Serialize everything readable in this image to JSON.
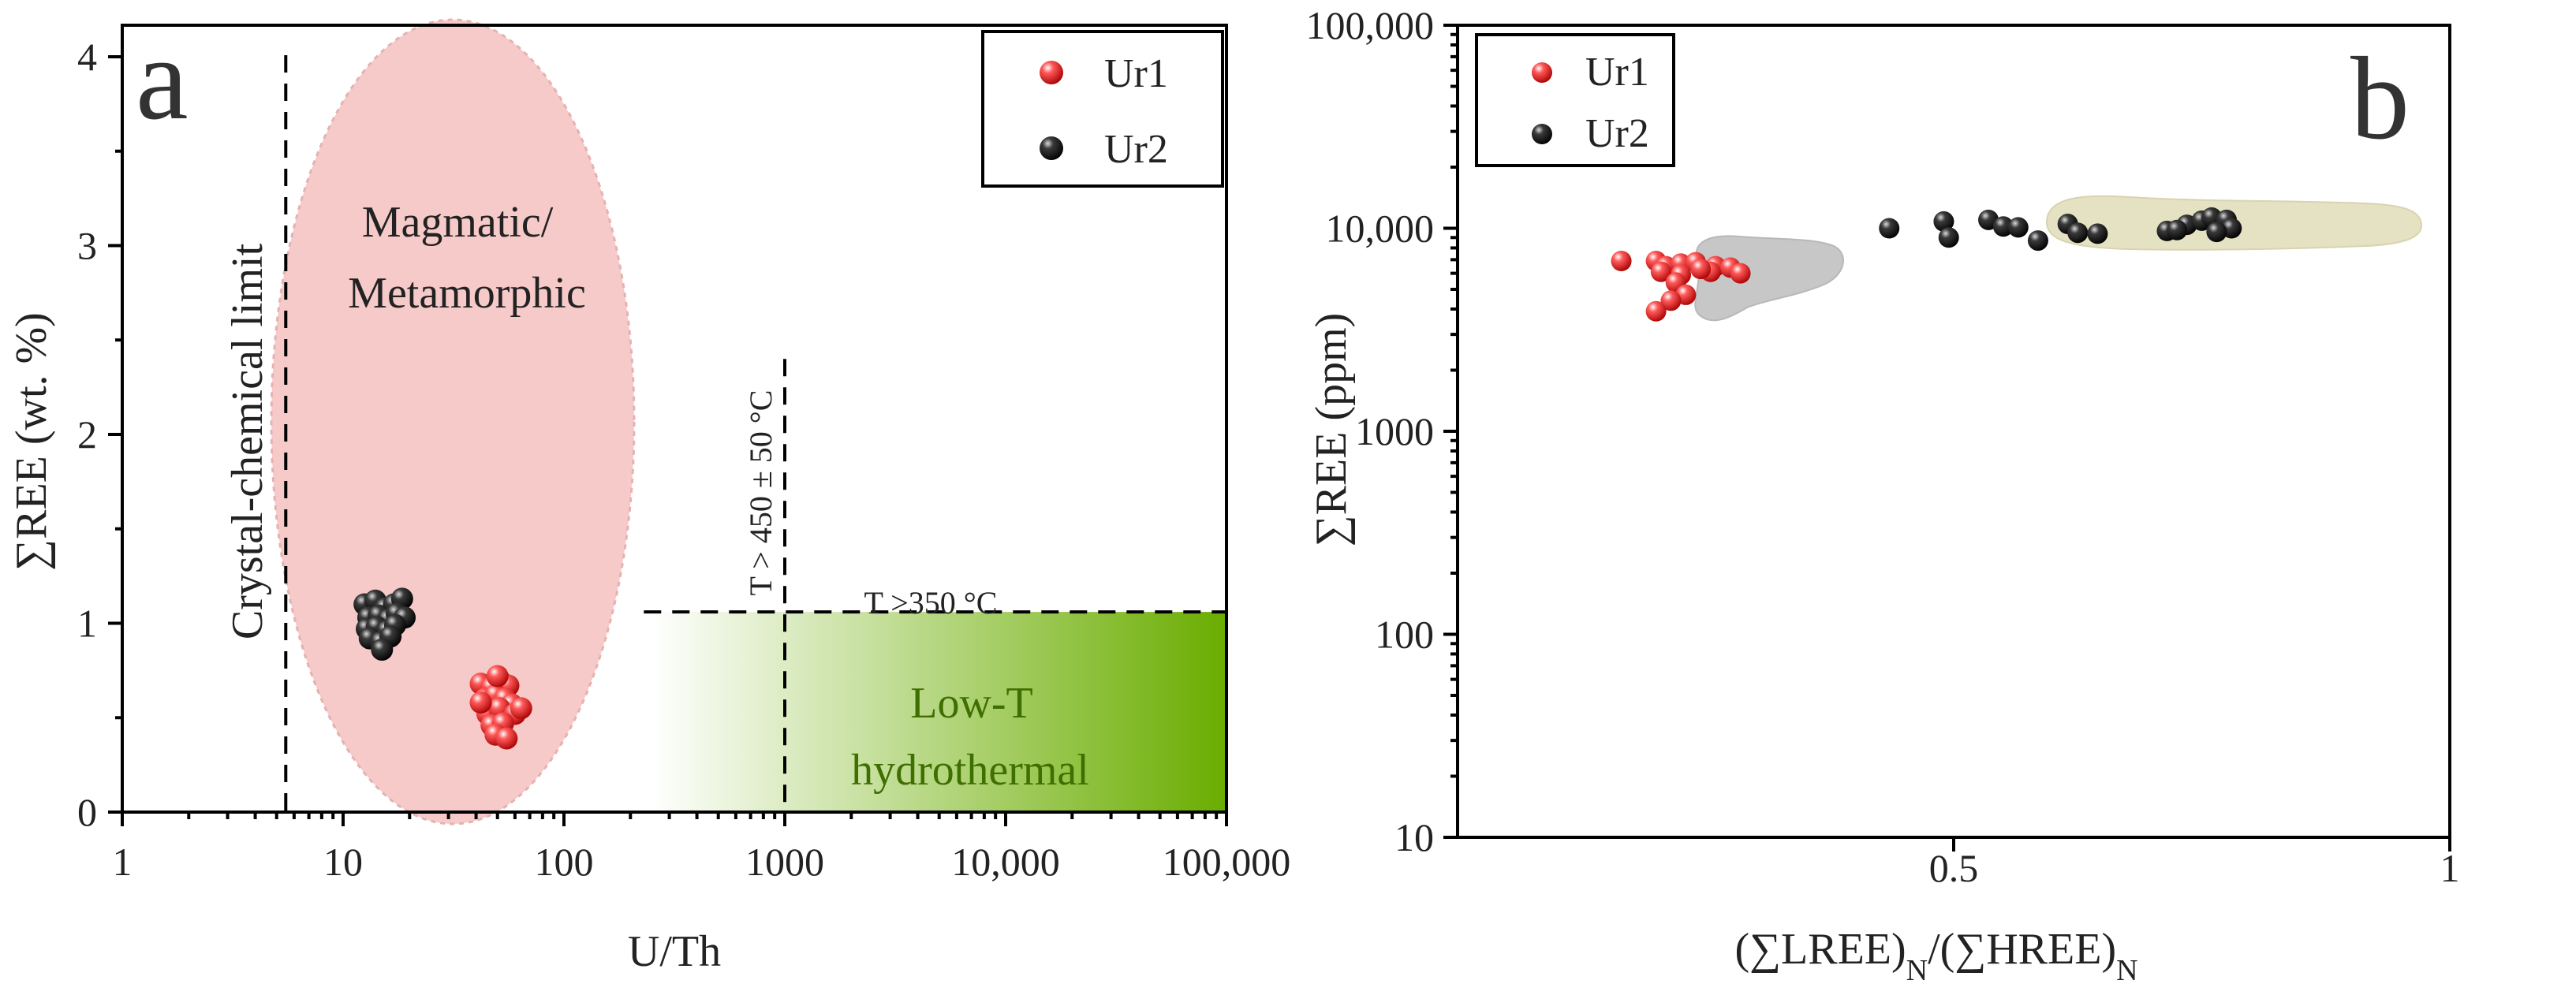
{
  "chart_data": [
    {
      "type": "scatter",
      "panel": "a",
      "xlabel": "U/Th",
      "ylabel": "∑REE (wt. %)",
      "xscale": "log",
      "xlim": [
        1,
        100000
      ],
      "ylim": [
        0,
        4.4
      ],
      "x_ticks": [
        {
          "value": 1,
          "label": "1"
        },
        {
          "value": 10,
          "label": "10"
        },
        {
          "value": 100,
          "label": "100"
        },
        {
          "value": 1000,
          "label": "1000"
        },
        {
          "value": 10000,
          "label": "10,000"
        },
        {
          "value": 100000,
          "label": "100,000"
        }
      ],
      "y_ticks": [
        {
          "value": 0,
          "label": "0"
        },
        {
          "value": 1,
          "label": "1"
        },
        {
          "value": 2,
          "label": "2"
        },
        {
          "value": 3,
          "label": "3"
        },
        {
          "value": 4,
          "label": "4"
        }
      ],
      "legend_position": "top-right",
      "series": [
        {
          "name": "Ur1",
          "color": "#e01818",
          "points": [
            [
              42,
              0.68
            ],
            [
              47,
              0.66
            ],
            [
              52,
              0.69
            ],
            [
              56,
              0.67
            ],
            [
              44,
              0.6
            ],
            [
              49,
              0.62
            ],
            [
              54,
              0.6
            ],
            [
              58,
              0.57
            ],
            [
              45,
              0.52
            ],
            [
              51,
              0.55
            ],
            [
              60,
              0.52
            ],
            [
              47,
              0.46
            ],
            [
              53,
              0.47
            ],
            [
              49,
              0.41
            ],
            [
              55,
              0.39
            ],
            [
              42,
              0.58
            ],
            [
              64,
              0.55
            ],
            [
              50,
              0.72
            ]
          ]
        },
        {
          "name": "Ur2",
          "color": "#111111",
          "points": [
            [
              12.5,
              1.1
            ],
            [
              14,
              1.12
            ],
            [
              15.5,
              1.08
            ],
            [
              17,
              1.1
            ],
            [
              18.5,
              1.13
            ],
            [
              13,
              1.03
            ],
            [
              14.5,
              1.04
            ],
            [
              16,
              1.02
            ],
            [
              17.5,
              1.05
            ],
            [
              19,
              1.03
            ],
            [
              12.8,
              0.97
            ],
            [
              14.2,
              0.98
            ],
            [
              15.8,
              0.96
            ],
            [
              17.2,
              0.99
            ],
            [
              13.2,
              0.92
            ],
            [
              14.8,
              0.9
            ],
            [
              16.4,
              0.93
            ],
            [
              15,
              0.86
            ]
          ]
        }
      ],
      "regions": [
        {
          "label": "Magmatic/ Metamorphic",
          "label_lines": [
            "Magmatic/",
            "Metamorphic"
          ],
          "color": "#f7caca"
        },
        {
          "label": "Low-T hydrothermal",
          "label_lines": [
            "Low-T",
            "hydrothermal"
          ],
          "color": "#6aad00",
          "x_range": [
            250,
            100000
          ],
          "y_range": [
            0,
            1.06
          ]
        }
      ],
      "annotations": [
        {
          "text": "Crystal-chemical limit",
          "x": 5.5
        },
        {
          "text": "T > 450 ± 50 °C",
          "x": 1000,
          "y_max": 2.4
        },
        {
          "text": "T >350 °C",
          "y": 1.06,
          "x_range": [
            230,
            100000
          ]
        }
      ]
    },
    {
      "type": "scatter",
      "panel": "b",
      "xlabel": "(∑LREE)N/(∑HREE)N",
      "ylabel": "∑REE (ppm)",
      "yscale": "log",
      "xlim": [
        0,
        1
      ],
      "ylim": [
        10,
        100000
      ],
      "x_ticks": [
        {
          "value": 0.5,
          "label": "0.5"
        },
        {
          "value": 1,
          "label": "1"
        }
      ],
      "y_ticks": [
        {
          "value": 10,
          "label": "10"
        },
        {
          "value": 100,
          "label": "100"
        },
        {
          "value": 1000,
          "label": "1000"
        },
        {
          "value": 10000,
          "label": "10,000"
        },
        {
          "value": 100000,
          "label": "100,000"
        }
      ],
      "legend_position": "top-left",
      "series": [
        {
          "name": "Ur1",
          "color": "#e01818",
          "points": [
            [
              0.165,
              6900
            ],
            [
              0.2,
              6900
            ],
            [
              0.21,
              6500
            ],
            [
              0.225,
              6700
            ],
            [
              0.24,
              6800
            ],
            [
              0.26,
              6500
            ],
            [
              0.275,
              6400
            ],
            [
              0.255,
              6100
            ],
            [
              0.285,
              6000
            ],
            [
              0.225,
              5900
            ],
            [
              0.205,
              6100
            ],
            [
              0.22,
              5400
            ],
            [
              0.23,
              4700
            ],
            [
              0.215,
              4400
            ],
            [
              0.2,
              3900
            ],
            [
              0.245,
              6300
            ]
          ]
        },
        {
          "name": "Ur2",
          "color": "#111111",
          "points": [
            [
              0.435,
              10000
            ],
            [
              0.49,
              10800
            ],
            [
              0.495,
              9000
            ],
            [
              0.535,
              11000
            ],
            [
              0.55,
              10200
            ],
            [
              0.565,
              10100
            ],
            [
              0.585,
              8700
            ],
            [
              0.615,
              10500
            ],
            [
              0.625,
              9500
            ],
            [
              0.645,
              9400
            ],
            [
              0.715,
              9700
            ],
            [
              0.735,
              10400
            ],
            [
              0.75,
              10900
            ],
            [
              0.76,
              11300
            ],
            [
              0.725,
              9800
            ],
            [
              0.775,
              11000
            ],
            [
              0.78,
              10000
            ],
            [
              0.765,
              9600
            ]
          ]
        }
      ],
      "regions": [
        {
          "series": "Ur1",
          "color": "#c7c7c7"
        },
        {
          "series": "Ur2",
          "color": "#e5e1c3"
        }
      ]
    }
  ],
  "panel_letters": {
    "a": "a",
    "b": "b"
  }
}
